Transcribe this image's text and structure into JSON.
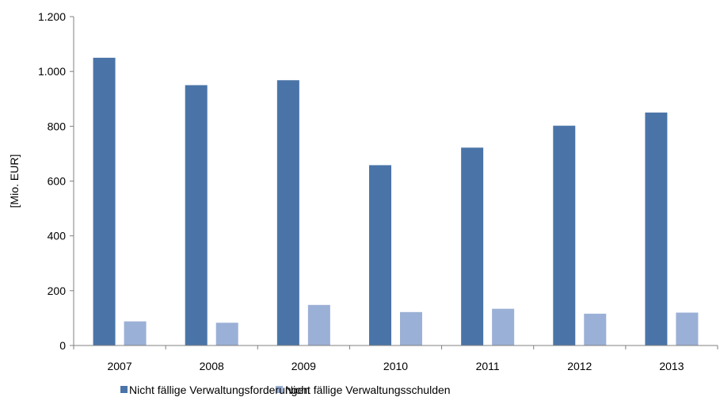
{
  "chart_data": {
    "type": "bar",
    "title": "",
    "xlabel": "",
    "ylabel": "[Mio. EUR]",
    "categories": [
      "2007",
      "2008",
      "2009",
      "2010",
      "2011",
      "2012",
      "2013"
    ],
    "series": [
      {
        "name": "Nicht fällige Verwaltungsforderungen",
        "color": "#4a74a8",
        "values": [
          1050,
          950,
          968,
          658,
          722,
          802,
          850
        ]
      },
      {
        "name": "Nicht fällige Verwaltungsschulden",
        "color": "#9bb0d6",
        "values": [
          88,
          83,
          148,
          122,
          134,
          116,
          120
        ]
      }
    ],
    "ylim": [
      0,
      1200
    ],
    "yticks": [
      0,
      200,
      400,
      600,
      800,
      1000,
      1200
    ],
    "ytick_labels": [
      "0",
      "200",
      "400",
      "600",
      "800",
      "1.000",
      "1.200"
    ],
    "grid": false,
    "legend_position": "bottom"
  }
}
